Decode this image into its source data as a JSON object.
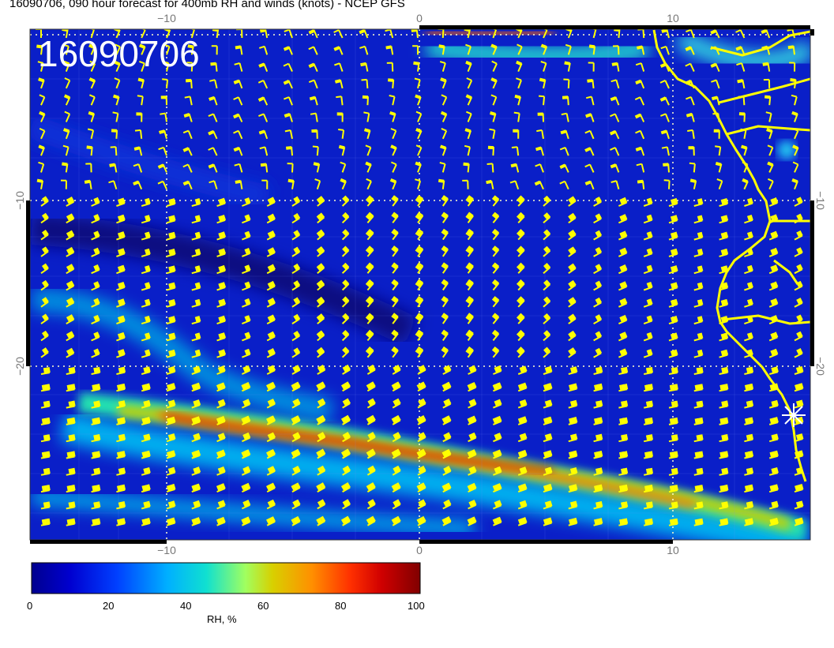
{
  "title": "16090706, 090 hour forecast for 400mb RH and winds (knots) - NCEP GFS",
  "stamp": "16090706",
  "axes": {
    "x_ticks": [
      "−10",
      "0",
      "10"
    ],
    "y_ticks": [
      "−10",
      "−20"
    ]
  },
  "colorbar": {
    "ticks": [
      "0",
      "20",
      "40",
      "60",
      "80",
      "100"
    ],
    "label": "RH, %",
    "colors": [
      "#00008f",
      "#0000ff",
      "#0080ff",
      "#00e0e0",
      "#80ff80",
      "#d8d000",
      "#ff8000",
      "#e00000",
      "#800000"
    ]
  },
  "map": {
    "background_color": "#0a1fc8",
    "barb_color": "#ffff00",
    "coast_color": "#ffff00",
    "gridline_color": "#ffffcc",
    "marker_color": "#ffffff"
  }
}
